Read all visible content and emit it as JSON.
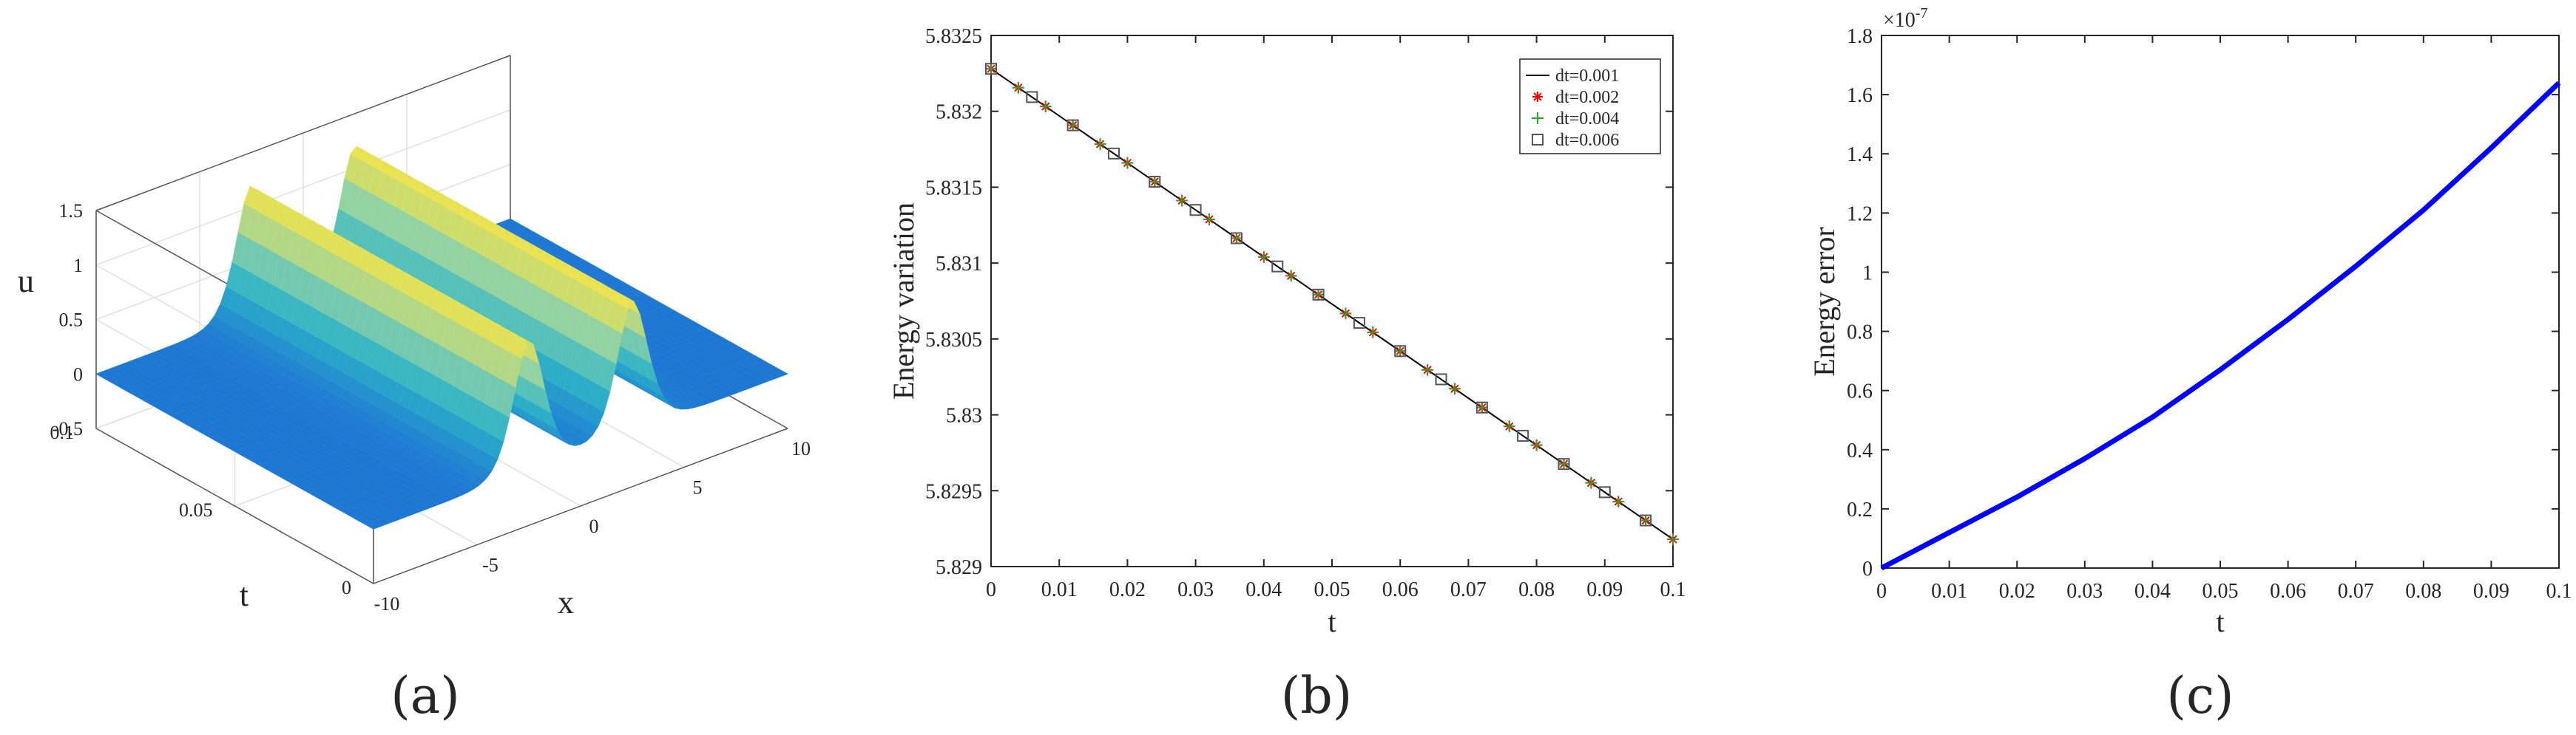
{
  "panels": [
    {
      "label": "(a)"
    },
    {
      "label": "(b)"
    },
    {
      "label": "(c)"
    }
  ],
  "chart_data": [
    {
      "type": "surface",
      "panel": "(a)",
      "xlabel": "x",
      "ylabel": "t",
      "zlabel": "u",
      "x_ticks": [
        "-10",
        "-5",
        "0",
        "5",
        "10"
      ],
      "t_ticks": [
        "0",
        "0.05",
        "0.1"
      ],
      "u_ticks": [
        "-0.5",
        "0",
        "0.5",
        "1",
        "1.5"
      ],
      "xlim": [
        -10,
        10
      ],
      "tlim": [
        0,
        0.1
      ],
      "zlim": [
        -0.5,
        1.5
      ],
      "peak1": {
        "x0": -2.5,
        "u": 1.2
      },
      "peak2": {
        "x0": 2.5,
        "u": 1.2
      },
      "colormap": [
        "#1f77d4",
        "#2db3c8",
        "#8fd1a6",
        "#f2e44a"
      ]
    },
    {
      "type": "line",
      "panel": "(b)",
      "xlabel": "t",
      "ylabel": "Energy variation",
      "xlim": [
        0,
        0.1
      ],
      "ylim": [
        5.829,
        5.8325
      ],
      "x_ticks": [
        "0",
        "0.01",
        "0.02",
        "0.03",
        "0.04",
        "0.05",
        "0.06",
        "0.07",
        "0.08",
        "0.09",
        "0.1"
      ],
      "y_ticks": [
        "5.829",
        "5.8295",
        "5.83",
        "5.8305",
        "5.831",
        "5.8315",
        "5.832",
        "5.8325"
      ],
      "legend_position": "top-right",
      "series": [
        {
          "name": "dt=0.001",
          "marker": "line",
          "color": "#000000",
          "x": [
            0,
            0.1
          ],
          "y": [
            5.83228,
            5.82918
          ]
        },
        {
          "name": "dt=0.002",
          "marker": "asterisk",
          "color": "#ff0000",
          "x_start": 0,
          "x_step": 0.002,
          "x_end": 0.1,
          "y_start": 5.83228,
          "y_end": 5.82918
        },
        {
          "name": "dt=0.004",
          "marker": "plus",
          "color": "#2ca02c",
          "x_start": 0,
          "x_step": 0.004,
          "x_end": 0.1,
          "y_start": 5.83228,
          "y_end": 5.82918
        },
        {
          "name": "dt=0.006",
          "marker": "square",
          "color": "#555555",
          "x_start": 0,
          "x_step": 0.006,
          "x_end": 0.1,
          "y_start": 5.83228,
          "y_end": 5.82918
        }
      ]
    },
    {
      "type": "line",
      "panel": "(c)",
      "xlabel": "t",
      "ylabel": "Energy error",
      "exponent_label": "×10",
      "exponent_power": "-7",
      "xlim": [
        0,
        0.1
      ],
      "ylim": [
        0,
        1.8
      ],
      "x_ticks": [
        "0",
        "0.01",
        "0.02",
        "0.03",
        "0.04",
        "0.05",
        "0.06",
        "0.07",
        "0.08",
        "0.09",
        "0.1"
      ],
      "y_ticks": [
        "0",
        "0.2",
        "0.4",
        "0.6",
        "0.8",
        "1",
        "1.2",
        "1.4",
        "1.6",
        "1.8"
      ],
      "series": [
        {
          "name": "",
          "color": "#0000ff",
          "x": [
            0,
            0.01,
            0.02,
            0.03,
            0.04,
            0.05,
            0.06,
            0.07,
            0.08,
            0.09,
            0.1
          ],
          "y": [
            0.0,
            0.12,
            0.24,
            0.37,
            0.51,
            0.67,
            0.84,
            1.02,
            1.21,
            1.42,
            1.64
          ]
        }
      ]
    }
  ]
}
